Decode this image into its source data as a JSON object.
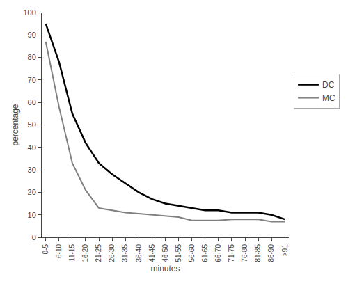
{
  "chart_data": {
    "type": "line",
    "xlabel": "minutes",
    "ylabel": "percentage",
    "categories": [
      "0-5",
      "6-10",
      "11-15",
      "16-20",
      "21-25",
      "26-30",
      "31-35",
      "36-40",
      "41-45",
      "46-50",
      "51-55",
      "56-60",
      "61-65",
      "66-70",
      "71-75",
      "76-80",
      "81-85",
      "86-90",
      ">91"
    ],
    "series": [
      {
        "name": "DC",
        "color": "#000000",
        "values": [
          95,
          78,
          55,
          42,
          33,
          28,
          24,
          20,
          17,
          15,
          14,
          13,
          12,
          12,
          11,
          11,
          11,
          10,
          8
        ]
      },
      {
        "name": "MC",
        "color": "#808080",
        "values": [
          87,
          58,
          33,
          21,
          13,
          12,
          11,
          10.5,
          10,
          9.5,
          9,
          7.5,
          7.5,
          7.5,
          8,
          8,
          8,
          7,
          7
        ]
      }
    ],
    "ylim": [
      0,
      100
    ],
    "yticks": [
      0,
      10,
      20,
      30,
      40,
      50,
      60,
      70,
      80,
      90,
      100
    ],
    "grid": false,
    "legend": "right"
  }
}
